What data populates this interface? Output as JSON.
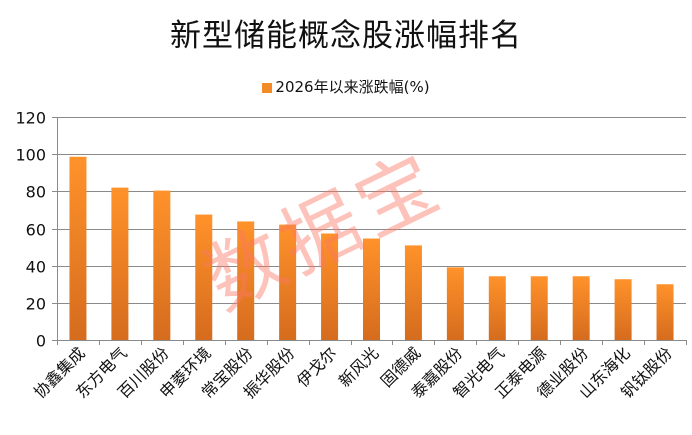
{
  "chart_data": {
    "type": "bar",
    "title": "新型储能概念股涨幅排名",
    "xlabel": "",
    "ylabel": "",
    "ylim": [
      0,
      120
    ],
    "yticks": [
      0,
      20,
      40,
      60,
      80,
      100,
      120
    ],
    "grid": true,
    "legend_position": "top",
    "categories": [
      "协鑫集成",
      "东方电气",
      "百川股份",
      "申菱环境",
      "常宝股份",
      "振华股份",
      "伊戈尔",
      "新风光",
      "固德威",
      "泰嘉股份",
      "智光电气",
      "正泰电源",
      "德业股份",
      "山东海化",
      "钒钛股份"
    ],
    "series": [
      {
        "name": "2026年以来涨跌幅(%)",
        "color": "#f28a25",
        "values": [
          98.6,
          82.0,
          80.4,
          67.5,
          63.8,
          62.1,
          57.3,
          54.6,
          50.9,
          39.1,
          34.3,
          34.3,
          34.3,
          32.7,
          30.0
        ]
      }
    ]
  },
  "watermark": "数据宝"
}
